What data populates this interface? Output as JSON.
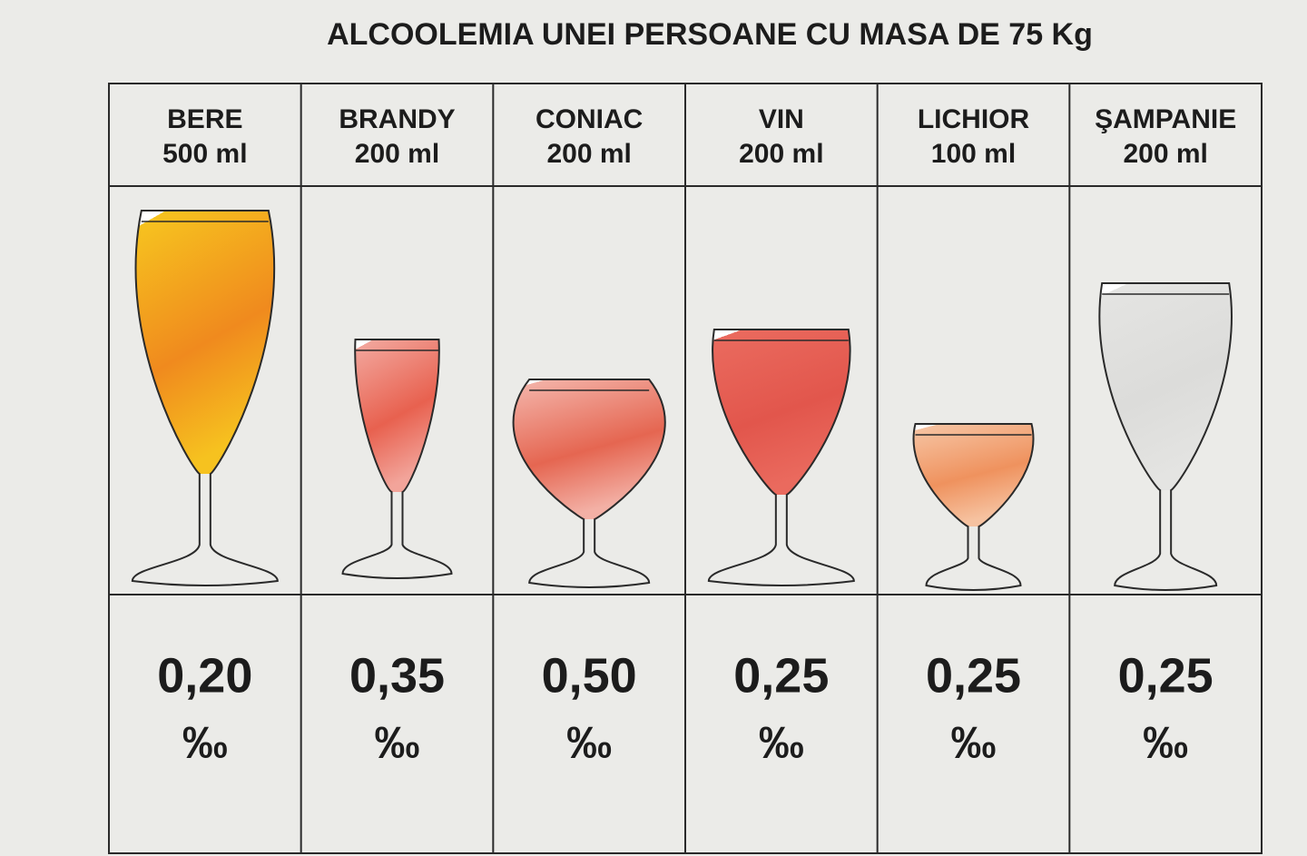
{
  "title": "ALCOOLEMIA UNEI PERSOANE CU MASA DE 75 Kg",
  "table": {
    "columns": [
      {
        "drink": "BERE",
        "volume": "500 ml",
        "value": "0,20",
        "unit": "‰"
      },
      {
        "drink": "BRANDY",
        "volume": "200 ml",
        "value": "0,35",
        "unit": "‰"
      },
      {
        "drink": "CONIAC",
        "volume": "200 ml",
        "value": "0,50",
        "unit": "‰"
      },
      {
        "drink": "VIN",
        "volume": "200 ml",
        "value": "0,25",
        "unit": "‰"
      },
      {
        "drink": "LICHIOR",
        "volume": "100 ml",
        "value": "0,25",
        "unit": "‰"
      },
      {
        "drink": "ŞAMPANIE",
        "volume": "200 ml",
        "value": "0,25",
        "unit": "‰"
      }
    ]
  }
}
